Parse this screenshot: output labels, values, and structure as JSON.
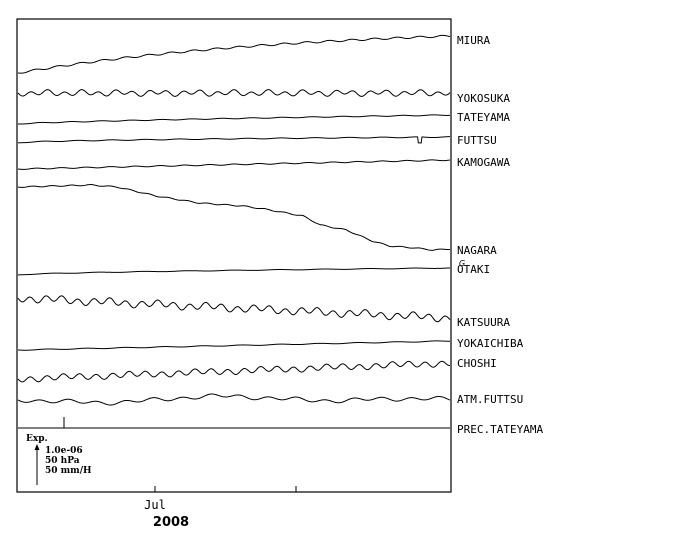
{
  "chart_data": {
    "type": "line",
    "title": "",
    "xlabel": "",
    "ylabel": "",
    "x_ticks": [
      "Jul"
    ],
    "year_label": "2008",
    "legend": {
      "title": "Exp.",
      "lines": [
        "1.0e-06",
        "50 hPa",
        "50 mm/H"
      ]
    },
    "note_marker": "G",
    "series": [
      {
        "name": "MIURA",
        "color": "#000000"
      },
      {
        "name": "YOKOSUKA",
        "color": "#000000"
      },
      {
        "name": "TATEYAMA",
        "color": "#000000"
      },
      {
        "name": "FUTTSU",
        "color": "#000000"
      },
      {
        "name": "KAMOGAWA",
        "color": "#000000"
      },
      {
        "name": "NAGARA",
        "color": "#000000"
      },
      {
        "name": "OTAKI",
        "color": "#000000"
      },
      {
        "name": "KATSUURA",
        "color": "#000000"
      },
      {
        "name": "YOKAICHIBA",
        "color": "#000000"
      },
      {
        "name": "CHOSHI",
        "color": "#000000"
      },
      {
        "name": "ATM.FUTTSU",
        "color": "#000000"
      },
      {
        "name": "PREC.TATEYAMA",
        "color": "#000000"
      }
    ]
  }
}
